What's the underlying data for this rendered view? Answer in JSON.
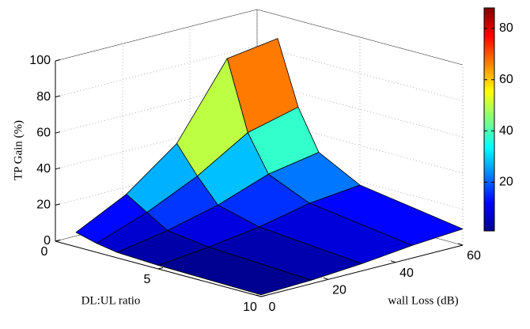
{
  "chart_data": {
    "type": "surface3d",
    "xlabel": "wall Loss (dB)",
    "ylabel": "DL:UL ratio",
    "zlabel": "TP Gain (%)",
    "x": [
      0,
      15,
      30,
      45,
      60
    ],
    "y": [
      1,
      2,
      3,
      5,
      10
    ],
    "z": [
      [
        8,
        22,
        43,
        83,
        87
      ],
      [
        5,
        15,
        28,
        45,
        52
      ],
      [
        3,
        8,
        15,
        25,
        30
      ],
      [
        2,
        5,
        9,
        15,
        18
      ],
      [
        1,
        2,
        4,
        7,
        9
      ]
    ],
    "xlim": [
      0,
      60
    ],
    "xticks": [
      0,
      20,
      40,
      60
    ],
    "ylim": [
      0,
      10
    ],
    "yticks": [
      0,
      5,
      10
    ],
    "zlim": [
      0,
      100
    ],
    "zticks": [
      0,
      20,
      40,
      60,
      80,
      100
    ],
    "clim": [
      1,
      88
    ],
    "cticks": [
      20,
      40,
      60,
      80
    ],
    "colormap": "jet",
    "grid": true
  }
}
